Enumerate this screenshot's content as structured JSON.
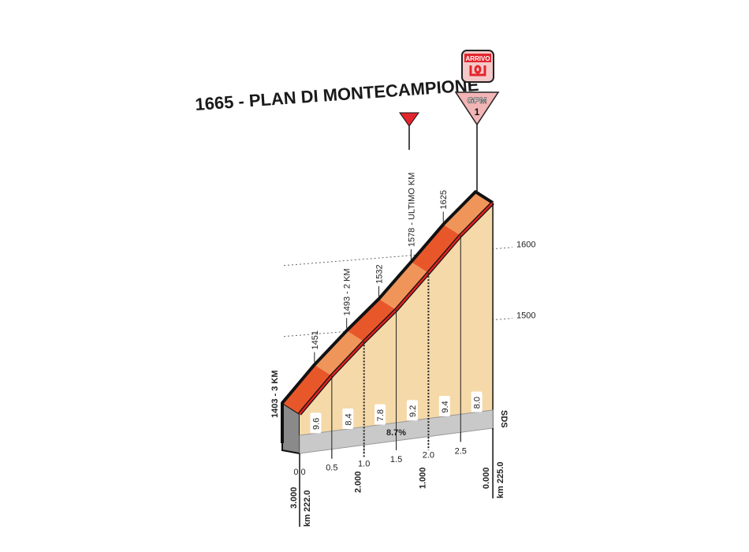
{
  "chart_data": {
    "type": "area",
    "title": "1665 - PLAN DI MONTECAMPIONE",
    "x_km": [
      0,
      0.5,
      1.0,
      1.5,
      2.0,
      2.5,
      3.0
    ],
    "elevation": [
      1403,
      1451,
      1493,
      1532,
      1578,
      1625,
      1665
    ],
    "point_labels": [
      "1403 - 3 KM",
      "1451",
      "1493 - 2 KM",
      "1532",
      "1578 - ULTIMO KM",
      "1625"
    ],
    "segment_gradients": [
      "9.6",
      "8.4",
      "7.8",
      "9.2",
      "9.4",
      "8.0"
    ],
    "average_gradient": "8.7%",
    "x_tick_labels": [
      "0.0",
      "0.5",
      "1.0",
      "1.5",
      "2.0",
      "2.5"
    ],
    "remaining_labels": [
      {
        "km": 0,
        "label": "3.000"
      },
      {
        "km": 1,
        "label": "2.000"
      },
      {
        "km": 2,
        "label": "1.000"
      },
      {
        "km": 3,
        "label": "0.000"
      }
    ],
    "km_labels": [
      {
        "km": 0,
        "label": "km 222.0"
      },
      {
        "km": 3,
        "label": "km 225.0"
      }
    ],
    "y_gridlines": [
      1500,
      1600
    ],
    "y_tick_labels": [
      "1500",
      "1600"
    ],
    "grid": "dotted",
    "markers": {
      "arrivo": "ARRIVO",
      "gpm": "GPM",
      "gpm_category": "1",
      "sds": "SDS"
    },
    "colors": {
      "face": "#f5d9a8",
      "band_dark": "#e8572a",
      "band_light": "#f0955a",
      "profile_line": "#e02020",
      "base": "#c9c9c9",
      "accent": "#e3262d"
    }
  }
}
